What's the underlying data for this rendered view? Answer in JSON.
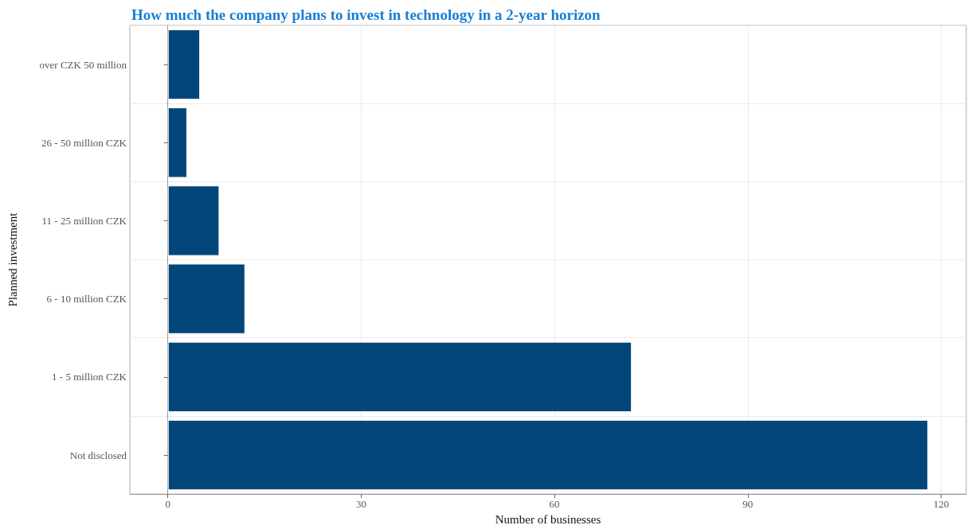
{
  "chart_data": {
    "type": "bar",
    "orientation": "horizontal",
    "title": "How much the company plans to invest in technology in a 2-year horizon",
    "xlabel": "Number of businesses",
    "ylabel": "Planned investment",
    "categories": [
      "over CZK 50 million",
      "26 - 50 million CZK",
      "11 - 25 million CZK",
      "6 - 10 million CZK",
      "1 - 5 million CZK",
      "Not disclosed"
    ],
    "values": [
      5,
      3,
      8,
      12,
      72,
      118
    ],
    "color": "#03477a",
    "xlim": [
      -5.9,
      123.9
    ],
    "xticks": [
      0,
      30,
      60,
      90,
      120
    ],
    "grid": true
  }
}
